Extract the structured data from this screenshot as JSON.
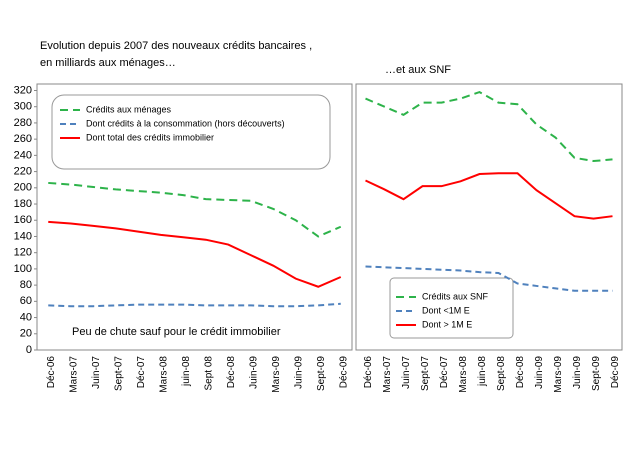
{
  "chart_data": [
    {
      "type": "line",
      "title": [
        "Evolution depuis 2007 des nouveaux  crédits bancaires ,",
        "en milliards aux ménages…"
      ],
      "categories": [
        "Déc-06",
        "Mars-07",
        "Juin-07",
        "Sept-07",
        "Déc-07",
        "Mars-08",
        "juin-08",
        "Sept 08",
        "Déc-08",
        "Juin-09",
        "Mars-09",
        "Juin-09",
        "Sept-09",
        "Déc-09"
      ],
      "series": [
        {
          "name": "Crédits aux ménages",
          "color": "#2db34a",
          "dash": "8,5",
          "values": [
            206,
            204,
            201,
            198,
            196,
            194,
            191,
            186,
            185,
            184,
            174,
            160,
            140,
            152
          ]
        },
        {
          "name": "Dont crédits à la consommation (hors découverts)",
          "color": "#4f81bd",
          "dash": "6,4",
          "values": [
            55,
            54,
            54,
            55,
            56,
            56,
            56,
            55,
            55,
            55,
            54,
            54,
            55,
            57
          ]
        },
        {
          "name": "Dont total des  crédits immobilier",
          "color": "#ff0000",
          "dash": "",
          "values": [
            158,
            156,
            153,
            150,
            146,
            142,
            139,
            136,
            130,
            117,
            104,
            88,
            78,
            90
          ]
        }
      ],
      "annotation": "Peu de chute sauf pour le crédit immobilier",
      "ylim": [
        0,
        328
      ],
      "yticks": [
        0,
        20,
        40,
        60,
        80,
        100,
        120,
        140,
        160,
        180,
        200,
        220,
        240,
        260,
        280,
        300,
        320
      ]
    },
    {
      "type": "line",
      "title": [
        "…et aux SNF"
      ],
      "categories": [
        "Déc-06",
        "Mars-07",
        "Juin-07",
        "Sept-07",
        "Déc-07",
        "Mars-08",
        "juin-08",
        "Sept-08",
        "Déc-08",
        "Juin-09",
        "Mars-09",
        "Juin-09",
        "Sept-09",
        "Déc-09"
      ],
      "series": [
        {
          "name": "Crédits aux SNF",
          "color": "#2db34a",
          "dash": "8,5",
          "values": [
            310,
            300,
            290,
            305,
            305,
            310,
            318,
            305,
            303,
            278,
            262,
            237,
            233,
            235
          ]
        },
        {
          "name": "Dont <1M E",
          "color": "#4f81bd",
          "dash": "6,4",
          "values": [
            103,
            102,
            101,
            100,
            99,
            98,
            96,
            95,
            82,
            79,
            76,
            73,
            73,
            73
          ]
        },
        {
          "name": "Dont > 1M E",
          "color": "#ff0000",
          "dash": "",
          "values": [
            209,
            198,
            186,
            202,
            202,
            208,
            217,
            218,
            218,
            197,
            181,
            165,
            162,
            165
          ]
        }
      ],
      "ylim": [
        0,
        328
      ]
    }
  ]
}
